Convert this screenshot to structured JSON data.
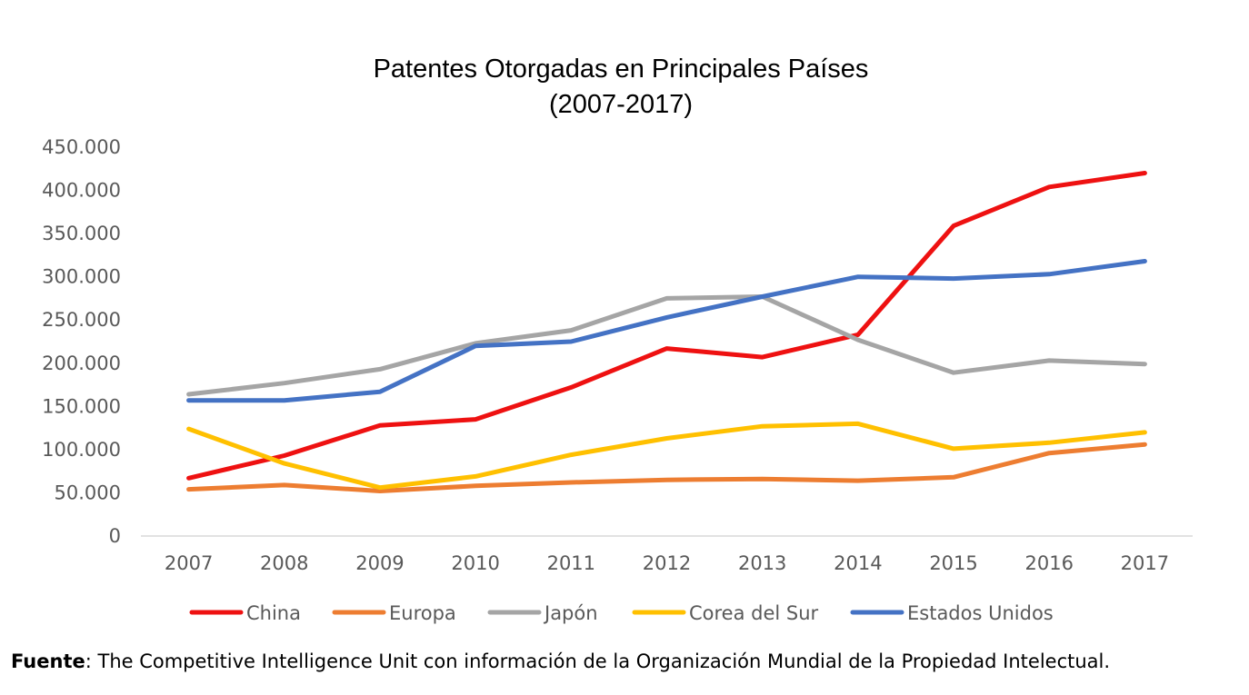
{
  "chart_data": {
    "type": "line",
    "title_lines": [
      "Patentes Otorgadas en Principales Países",
      "(2007-2017)"
    ],
    "categories": [
      "2007",
      "2008",
      "2009",
      "2010",
      "2011",
      "2012",
      "2013",
      "2014",
      "2015",
      "2016",
      "2017"
    ],
    "ylim": [
      0,
      450000
    ],
    "yticks": [
      0,
      50000,
      100000,
      150000,
      200000,
      250000,
      300000,
      350000,
      400000,
      450000
    ],
    "ytick_labels": [
      "0",
      "50.000",
      "100.000",
      "150.000",
      "200.000",
      "250.000",
      "300.000",
      "350.000",
      "400.000",
      "450.000"
    ],
    "grid": false,
    "legend_position": "bottom",
    "series": [
      {
        "name": "China",
        "color": "#EE1111",
        "values": [
          67000,
          93000,
          128000,
          135000,
          172000,
          217000,
          207000,
          233000,
          359000,
          404000,
          420000
        ]
      },
      {
        "name": "Europa",
        "color": "#ED7D31",
        "values": [
          54000,
          59000,
          52000,
          58000,
          62000,
          65000,
          66000,
          64000,
          68000,
          96000,
          106000
        ]
      },
      {
        "name": "Japón",
        "color": "#A5A5A5",
        "values": [
          164000,
          177000,
          193000,
          223000,
          238000,
          275000,
          277000,
          227000,
          189000,
          203000,
          199000
        ]
      },
      {
        "name": "Corea del Sur",
        "color": "#FFC000",
        "values": [
          124000,
          84000,
          56000,
          69000,
          94000,
          113000,
          127000,
          130000,
          101000,
          108000,
          120000
        ]
      },
      {
        "name": "Estados Unidos",
        "color": "#4472C4",
        "values": [
          157000,
          157000,
          167000,
          220000,
          225000,
          253000,
          277000,
          300000,
          298000,
          303000,
          318000
        ]
      }
    ]
  },
  "source_note": {
    "label": "Fuente",
    "text": ": The Competitive Intelligence Unit con información de la Organización Mundial de la Propiedad Intelectual."
  }
}
